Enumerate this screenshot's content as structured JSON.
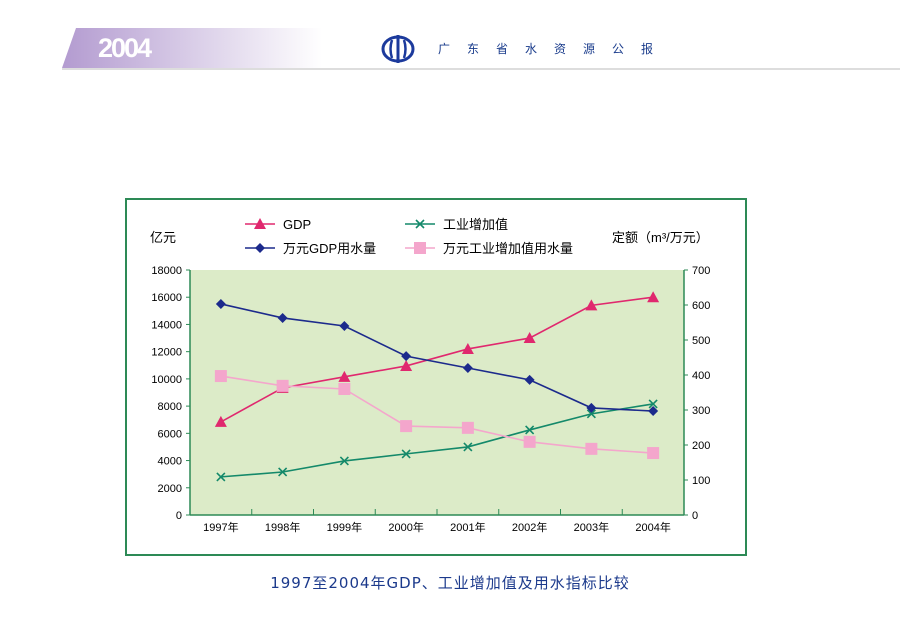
{
  "header": {
    "year": "2004",
    "publication": "广东省水资源公报"
  },
  "caption": "1997至2004年GDP、工业增加值及用水指标比较",
  "chart_data": {
    "type": "line",
    "title": "1997至2004年GDP、工业增加值及用水指标比较",
    "categories": [
      "1997年",
      "1998年",
      "1999年",
      "2000年",
      "2001年",
      "2002年",
      "2003年",
      "2004年"
    ],
    "y_left": {
      "label": "亿元",
      "range": [
        0,
        18000
      ],
      "ticks": [
        0,
        2000,
        4000,
        6000,
        8000,
        10000,
        12000,
        14000,
        16000,
        18000
      ]
    },
    "y_right": {
      "label": "定额（m³/万元）",
      "range": [
        0,
        700
      ],
      "ticks": [
        0,
        100,
        200,
        300,
        400,
        500,
        600,
        700
      ]
    },
    "grid": false,
    "legend": "top",
    "series": [
      {
        "name": "GDP",
        "axis": "left",
        "marker": "triangle",
        "color": "#e0286e",
        "values": [
          6840,
          9340,
          10150,
          10950,
          12200,
          13000,
          15400,
          16000
        ]
      },
      {
        "name": "工业增加值",
        "axis": "left",
        "marker": "x",
        "color": "#14896a",
        "values": [
          2800,
          3160,
          3970,
          4490,
          5000,
          6250,
          7430,
          8160
        ]
      },
      {
        "name": "万元GDP用水量",
        "axis": "right",
        "marker": "diamond",
        "color": "#1c2a8c",
        "values": [
          603,
          563,
          540,
          454,
          420,
          386,
          306,
          297
        ]
      },
      {
        "name": "万元工业增加值用水量",
        "axis": "right",
        "marker": "square",
        "color": "#f4a6cc",
        "values": [
          397,
          369,
          360,
          254,
          249,
          209,
          189,
          177
        ]
      }
    ],
    "plot_background": "#dcebc8"
  }
}
